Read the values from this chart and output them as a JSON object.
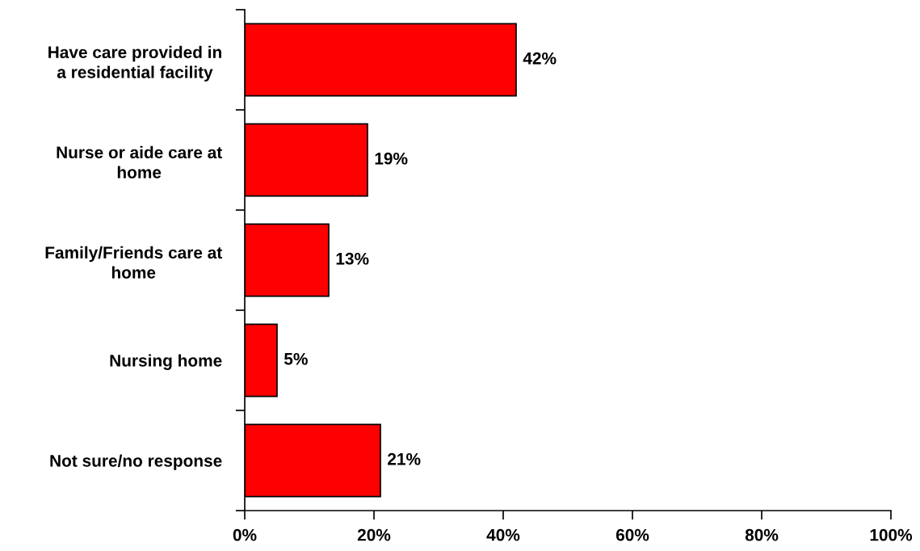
{
  "chart_data": {
    "type": "bar",
    "orientation": "horizontal",
    "categories": [
      "Have care provided in a residential facility",
      "Nurse or aide care at home",
      "Family/Friends care at home",
      "Nursing home",
      "Not sure/no response"
    ],
    "values": [
      42,
      19,
      13,
      5,
      21
    ],
    "color": "#ff0000",
    "value_labels": [
      "42%",
      "19%",
      "13%",
      "5%",
      "21%"
    ],
    "xlim": [
      0,
      100
    ],
    "xticks": [
      {
        "value": 0,
        "label": "0%"
      },
      {
        "value": 20,
        "label": "20%"
      },
      {
        "value": 40,
        "label": "40%"
      },
      {
        "value": 60,
        "label": "60%"
      },
      {
        "value": 80,
        "label": "80%"
      },
      {
        "value": 100,
        "label": "100%"
      }
    ],
    "grid": false,
    "legend": false
  }
}
